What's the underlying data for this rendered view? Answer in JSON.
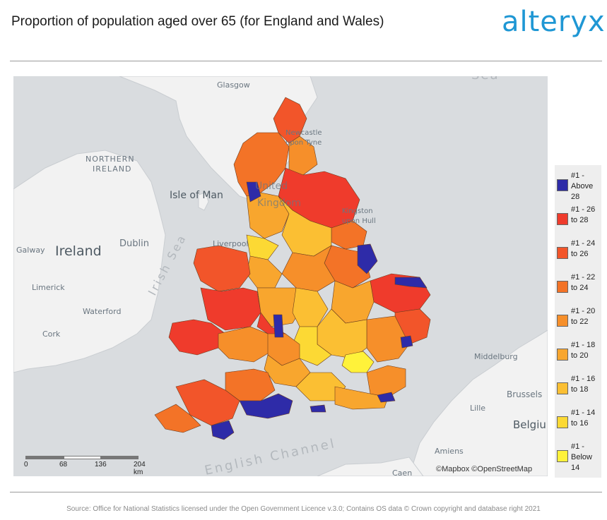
{
  "title": "Proportion of population aged over 65 (for England and Wales)",
  "brand": {
    "logo_text": "alteryx",
    "logo_color": "#1f97d4"
  },
  "map": {
    "place_labels": {
      "glasgow": "Glasgow",
      "northern_ireland_1": "NORTHERN",
      "northern_ireland_2": "IRELAND",
      "isle_of_man": "Isle of Man",
      "newcastle_1": "Newcastle",
      "newcastle_2": "upon Tyne",
      "united_kingdom_1": "United",
      "united_kingdom_2": "Kingdom",
      "kingston_1": "Kingston",
      "kingston_2": "upon Hull",
      "liverpool": "Liverpool",
      "dublin": "Dublin",
      "ireland": "Ireland",
      "galway": "Galway",
      "limerick": "Limerick",
      "waterford": "Waterford",
      "cork": "Cork",
      "middelburg": "Middelburg",
      "brussels": "Brussels",
      "lille": "Lille",
      "belgium": "Belgiu",
      "amiens": "Amiens",
      "irish_sea": "Irish Sea",
      "english_channel": "English Channel",
      "north_sea_fragment": "Sea",
      "caen_fragment": "Caen"
    },
    "colors": {
      "land": "#f2f2f2",
      "sea": "#d9dcdf",
      "border": "#9a9a9a"
    }
  },
  "legend": {
    "items": [
      {
        "label": "#1 - Above 28",
        "color": "#2e2ba8"
      },
      {
        "label": "#1 - 26 to 28",
        "color": "#ef3b2c"
      },
      {
        "label": "#1 - 24 to 26",
        "color": "#f2552a"
      },
      {
        "label": "#1 - 22 to 24",
        "color": "#f37327"
      },
      {
        "label": "#1 - 20 to 22",
        "color": "#f68f2a"
      },
      {
        "label": "#1 - 18 to 20",
        "color": "#f8a62e"
      },
      {
        "label": "#1 - 16 to 18",
        "color": "#fbbf33"
      },
      {
        "label": "#1 - 14 to 16",
        "color": "#fcd934"
      },
      {
        "label": "#1 - Below 14",
        "color": "#fff23a"
      }
    ]
  },
  "scale": {
    "ticks": [
      "0",
      "68",
      "136",
      "204 km"
    ]
  },
  "attribution": "©Mapbox ©OpenStreetMap",
  "source": "Source: Office for National Statistics licensed under the Open Government Licence v.3.0; Contains OS data © Crown copyright and database right 2021"
}
